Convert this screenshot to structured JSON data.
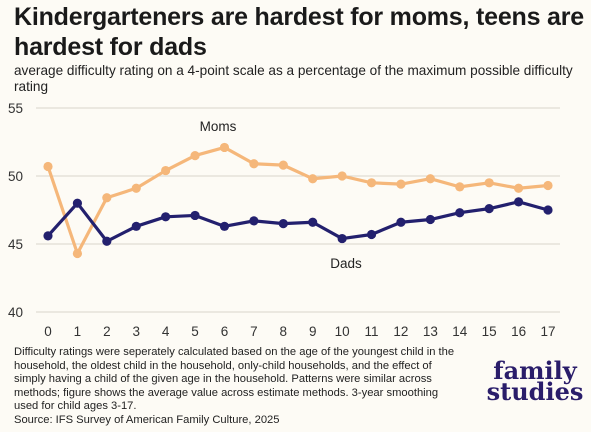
{
  "title": "Kindergarteners are hardest for moms, teens are hardest for dads",
  "subtitle": "average difficulty rating on a 4-point scale as a percentage of the maximum possible difficulty rating",
  "note": "Difficulty ratings were seperately calculated based on the age of the youngest child in the household, the oldest child in the household, only-child households, and the effect of simply having a child of the given age in the household. Patterns were similar across methods; figure shows the average value across estimate methods. 3-year smoothing used for child ages 3-17.",
  "source": "Source: IFS Survey of American Family Culture, 2025",
  "logo": {
    "line1": "family",
    "line2": "studies"
  },
  "chart_data": {
    "type": "line",
    "title": "Kindergarteners are hardest for moms, teens are hardest for dads",
    "subtitle": "average difficulty rating on a 4-point scale as a percentage of the maximum possible difficulty rating",
    "x": [
      0,
      1,
      2,
      3,
      4,
      5,
      6,
      7,
      8,
      9,
      10,
      11,
      12,
      13,
      14,
      15,
      16,
      17
    ],
    "series": [
      {
        "name": "Moms",
        "color": "#f5b77a",
        "values": [
          50.7,
          44.3,
          48.4,
          49.1,
          50.4,
          51.5,
          52.1,
          50.9,
          50.8,
          49.8,
          50.0,
          49.5,
          49.4,
          49.8,
          49.2,
          49.5,
          49.1,
          49.3
        ]
      },
      {
        "name": "Dads",
        "color": "#23206e",
        "values": [
          45.6,
          48.0,
          45.2,
          46.3,
          47.0,
          47.1,
          46.3,
          46.7,
          46.5,
          46.6,
          45.4,
          45.7,
          46.6,
          46.8,
          47.3,
          47.6,
          48.1,
          47.5
        ]
      }
    ],
    "ylim": [
      40,
      55
    ],
    "yticks": [
      40,
      45,
      50,
      55
    ],
    "grid": true,
    "legend": "inline labels"
  }
}
